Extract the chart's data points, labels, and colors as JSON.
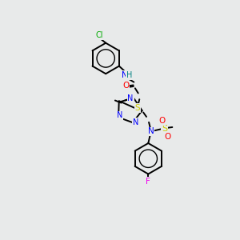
{
  "background_color": "#e8eaea",
  "atom_colors": {
    "C": "#000000",
    "N": "#0000ff",
    "O": "#ff0000",
    "S": "#cccc00",
    "Cl": "#00aa00",
    "F": "#ee00ee",
    "H": "#008080"
  },
  "bond_color": "#000000",
  "lw": 1.4
}
